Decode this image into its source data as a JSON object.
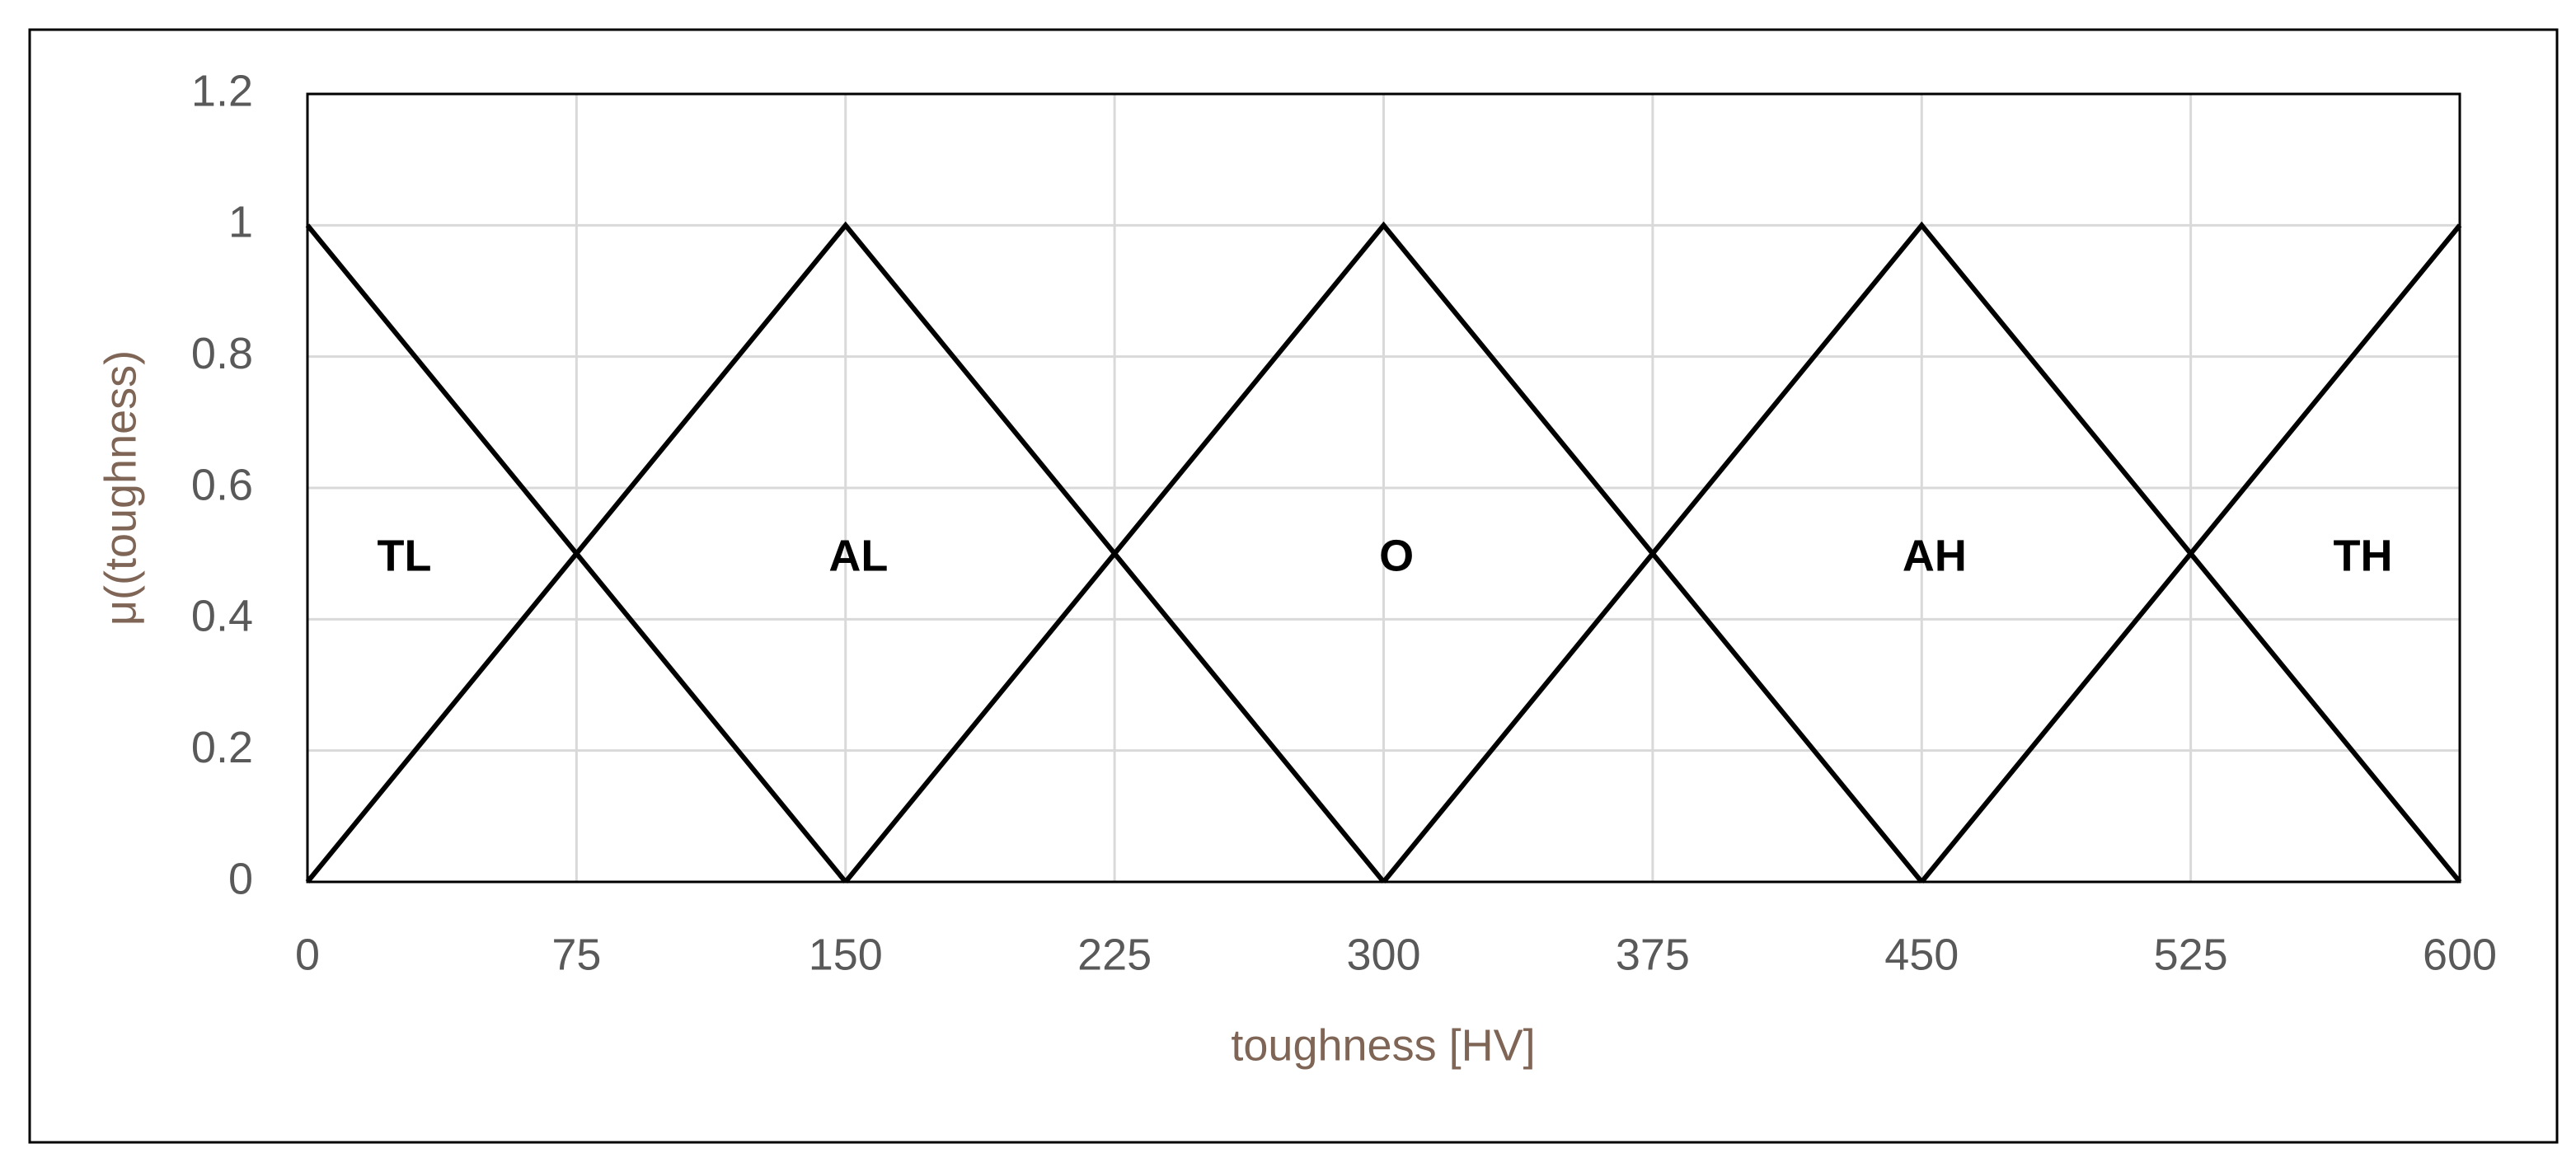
{
  "chart_data": {
    "type": "line",
    "xlabel": "toughness [HV]",
    "ylabel": "μ((toughness)",
    "series": [
      {
        "name": "TL",
        "color": "#000000",
        "x": [
          0,
          150
        ],
        "values": [
          1,
          0
        ]
      },
      {
        "name": "AL",
        "color": "#000000",
        "x": [
          0,
          150,
          300
        ],
        "values": [
          0,
          1,
          0
        ]
      },
      {
        "name": "O",
        "color": "#000000",
        "x": [
          150,
          300,
          450
        ],
        "values": [
          0,
          1,
          0
        ]
      },
      {
        "name": "AH",
        "color": "#000000",
        "x": [
          300,
          450,
          600
        ],
        "values": [
          0,
          1,
          0
        ]
      },
      {
        "name": "TH",
        "color": "#000000",
        "x": [
          450,
          600
        ],
        "values": [
          0,
          1
        ]
      }
    ],
    "xlim": [
      0,
      600
    ],
    "xticks": [
      0,
      75,
      150,
      225,
      300,
      375,
      450,
      525,
      600
    ],
    "ylim": [
      0,
      1.2
    ],
    "yticks": [
      0,
      0.2,
      0.4,
      0.6,
      0.8,
      1,
      1.2
    ],
    "grid": true
  }
}
